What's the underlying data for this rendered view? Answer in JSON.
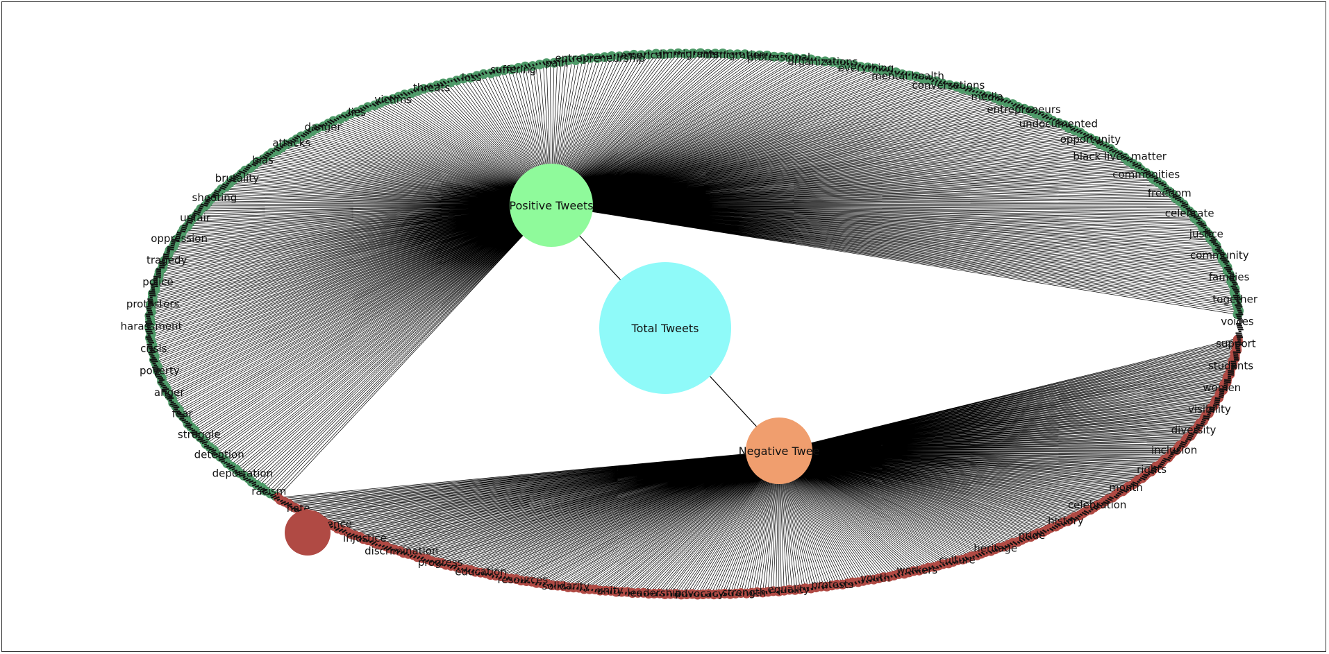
{
  "diagram": {
    "type": "network-graph",
    "colors": {
      "total_node": "#8ffaf9",
      "positive_node": "#8ffa9b",
      "negative_node": "#f09e6e",
      "negative_word_hub": "#b04a44",
      "positive_word_dots": "#4e9a68",
      "negative_word_dots": "#b04a44",
      "edges": "#000000",
      "frame": "#333333"
    },
    "nodes": {
      "total": {
        "label": "Total Tweets"
      },
      "positive": {
        "label": "Positive Tweets"
      },
      "negative": {
        "label": "Negative Twee"
      }
    },
    "word_labels": [
      "entrepreneurship",
      "american",
      "immigrants",
      "immigration",
      "professional",
      "organizations",
      "everything",
      "mental health",
      "conversations",
      "media",
      "entrepreneurs",
      "undocumented",
      "opportunity",
      "black lives matter",
      "communities",
      "freedom",
      "celebrate",
      "justice",
      "community",
      "families",
      "together",
      "voices",
      "support",
      "students",
      "women",
      "visibility",
      "diversity",
      "inclusion",
      "rights",
      "month",
      "celebration",
      "history",
      "pride",
      "heritage",
      "culture",
      "workers",
      "youth",
      "protests",
      "equality",
      "strength",
      "advocacy",
      "leadership",
      "unity",
      "solidarity",
      "resources",
      "education",
      "progress",
      "discrimination",
      "injustice",
      "violence",
      "hate",
      "racism",
      "deportation",
      "detention",
      "struggle",
      "fear",
      "anger",
      "poverty",
      "crisis",
      "harassment",
      "protesters",
      "police",
      "tragedy",
      "oppression",
      "unfair",
      "shooting",
      "brutality",
      "bias",
      "attacks",
      "danger",
      "lies",
      "victims",
      "threats",
      "loss",
      "suffering",
      "pain"
    ]
  }
}
